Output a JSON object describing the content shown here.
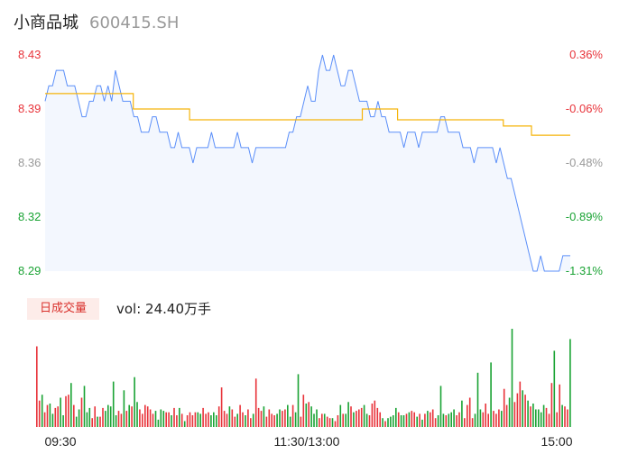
{
  "header": {
    "name": "小商品城",
    "code": "600415.SH"
  },
  "colors": {
    "price_line": "#5b8ff9",
    "avg_line": "#f5b40a",
    "up": "#e8333a",
    "down": "#1aa334",
    "flat": "#999999"
  },
  "volume": {
    "badge": "日成交量",
    "summary": "vol: 24.40万手"
  },
  "chart_data": [
    {
      "type": "line",
      "title": "",
      "y_ticks_left": [
        "8.43",
        "8.39",
        "8.36",
        "8.32",
        "8.29"
      ],
      "y_ticks_right": [
        "0.36%",
        "-0.06%",
        "-0.48%",
        "-0.89%",
        "-1.31%"
      ],
      "ylim": [
        8.29,
        8.43
      ],
      "x_ticks": [
        "09:30",
        "11:30/13:00",
        "15:00"
      ],
      "series": [
        {
          "values": [
            8.4,
            8.41,
            8.41,
            8.42,
            8.42,
            8.42,
            8.41,
            8.41,
            8.41,
            8.4,
            8.39,
            8.39,
            8.4,
            8.4,
            8.41,
            8.41,
            8.4,
            8.41,
            8.4,
            8.42,
            8.41,
            8.4,
            8.4,
            8.4,
            8.39,
            8.39,
            8.38,
            8.38,
            8.38,
            8.39,
            8.39,
            8.38,
            8.38,
            8.38,
            8.37,
            8.37,
            8.38,
            8.37,
            8.37,
            8.37,
            8.36,
            8.37,
            8.37,
            8.37,
            8.37,
            8.38,
            8.37,
            8.37,
            8.37,
            8.37,
            8.37,
            8.37,
            8.38,
            8.37,
            8.37,
            8.37,
            8.36,
            8.37,
            8.37,
            8.37,
            8.37,
            8.37,
            8.37,
            8.37,
            8.37,
            8.37,
            8.38,
            8.38,
            8.39,
            8.39,
            8.4,
            8.41,
            8.4,
            8.4,
            8.42,
            8.43,
            8.42,
            8.42,
            8.43,
            8.42,
            8.41,
            8.41,
            8.42,
            8.42,
            8.41,
            8.4,
            8.4,
            8.4,
            8.39,
            8.39,
            8.4,
            8.39,
            8.39,
            8.38,
            8.38,
            8.38,
            8.38,
            8.37,
            8.38,
            8.38,
            8.38,
            8.37,
            8.38,
            8.38,
            8.38,
            8.38,
            8.38,
            8.39,
            8.39,
            8.38,
            8.38,
            8.38,
            8.38,
            8.37,
            8.37,
            8.37,
            8.36,
            8.37,
            8.37,
            8.37,
            8.37,
            8.37,
            8.36,
            8.37,
            8.36,
            8.35,
            8.35,
            8.34,
            8.33,
            8.32,
            8.31,
            8.3,
            8.29,
            8.29,
            8.3,
            8.29,
            8.29,
            8.29,
            8.29,
            8.29,
            8.3,
            8.3,
            8.3
          ],
          "color": "#5b8ff9"
        },
        {
          "values": [
            8.405,
            8.405,
            8.405,
            8.405,
            8.405,
            8.405,
            8.405,
            8.405,
            8.405,
            8.405,
            8.405,
            8.405,
            8.405,
            8.405,
            8.405,
            8.405,
            8.405,
            8.405,
            8.405,
            8.405,
            8.405,
            8.405,
            8.405,
            8.405,
            8.405,
            8.395,
            8.395,
            8.395,
            8.395,
            8.395,
            8.395,
            8.395,
            8.395,
            8.395,
            8.395,
            8.395,
            8.395,
            8.395,
            8.395,
            8.395,
            8.395,
            8.388,
            8.388,
            8.388,
            8.388,
            8.388,
            8.388,
            8.388,
            8.388,
            8.388,
            8.388,
            8.388,
            8.388,
            8.388,
            8.388,
            8.388,
            8.388,
            8.388,
            8.388,
            8.388,
            8.388,
            8.388,
            8.388,
            8.388,
            8.388,
            8.388,
            8.388,
            8.388,
            8.388,
            8.388,
            8.388,
            8.388,
            8.388,
            8.388,
            8.388,
            8.388,
            8.388,
            8.388,
            8.388,
            8.388,
            8.388,
            8.388,
            8.388,
            8.388,
            8.388,
            8.388,
            8.388,
            8.388,
            8.388,
            8.388,
            8.395,
            8.395,
            8.395,
            8.395,
            8.395,
            8.395,
            8.395,
            8.395,
            8.395,
            8.395,
            8.388,
            8.388,
            8.388,
            8.388,
            8.388,
            8.388,
            8.388,
            8.388,
            8.388,
            8.388,
            8.388,
            8.388,
            8.388,
            8.388,
            8.388,
            8.388,
            8.388,
            8.388,
            8.388,
            8.388,
            8.388,
            8.388,
            8.388,
            8.388,
            8.388,
            8.388,
            8.388,
            8.388,
            8.388,
            8.388,
            8.384,
            8.384,
            8.384,
            8.384,
            8.384,
            8.384,
            8.384,
            8.384,
            8.378,
            8.378,
            8.378,
            8.378,
            8.378,
            8.378,
            8.378,
            8.378,
            8.378,
            8.378,
            8.378,
            8.378
          ],
          "color": "#f5b40a"
        }
      ]
    },
    {
      "type": "bar",
      "title": "",
      "values": [
        55,
        18,
        22,
        10,
        15,
        16,
        9,
        13,
        14,
        20,
        8,
        21,
        22,
        30,
        15,
        7,
        12,
        20,
        28,
        10,
        13,
        6,
        14,
        7,
        7,
        13,
        11,
        15,
        14,
        31,
        8,
        11,
        9,
        25,
        11,
        15,
        14,
        34,
        17,
        12,
        9,
        15,
        14,
        12,
        9,
        11,
        5,
        12,
        11,
        10,
        10,
        8,
        13,
        8,
        13,
        9,
        4,
        8,
        10,
        8,
        10,
        10,
        9,
        13,
        9,
        10,
        8,
        10,
        8,
        14,
        27,
        11,
        9,
        14,
        12,
        7,
        9,
        15,
        10,
        8,
        12,
        6,
        9,
        33,
        13,
        11,
        14,
        7,
        12,
        9,
        8,
        9,
        12,
        11,
        12,
        15,
        7,
        15,
        10,
        36,
        7,
        22,
        16,
        17,
        14,
        9,
        12,
        6,
        9,
        9,
        7,
        6,
        6,
        4,
        8,
        15,
        9,
        9,
        17,
        14,
        10,
        11,
        12,
        13,
        15,
        9,
        8,
        16,
        18,
        13,
        10,
        6,
        4,
        6,
        7,
        8,
        13,
        10,
        8,
        8,
        9,
        10,
        11,
        10,
        7,
        9,
        5,
        9,
        11,
        10,
        12,
        6,
        8,
        28,
        9,
        8,
        9,
        10,
        12,
        8,
        10,
        18,
        6,
        15,
        20,
        6,
        9,
        37,
        12,
        10,
        16,
        9,
        44,
        11,
        9,
        12,
        11,
        26,
        15,
        20,
        67,
        17,
        23,
        31,
        25,
        22,
        18,
        14,
        16,
        12,
        12,
        10,
        15,
        13,
        9,
        30,
        52,
        10,
        29,
        15,
        14,
        12,
        60
      ],
      "colors": [
        "up",
        "up",
        "down",
        "up",
        "up",
        "down",
        "down",
        "up",
        "up",
        "down",
        "down",
        "up",
        "up",
        "down",
        "up",
        "down",
        "down",
        "up",
        "down",
        "down",
        "down",
        "up",
        "up",
        "down",
        "up",
        "up",
        "down",
        "down",
        "down",
        "down",
        "down",
        "up",
        "up",
        "down",
        "up",
        "down",
        "up",
        "down",
        "down",
        "up",
        "up",
        "up",
        "up",
        "up",
        "up",
        "down",
        "down",
        "down",
        "down",
        "up",
        "up",
        "down",
        "up",
        "up",
        "down",
        "up",
        "down",
        "up",
        "up",
        "up",
        "up",
        "down",
        "down",
        "up",
        "up",
        "up",
        "down",
        "down",
        "down",
        "up",
        "up",
        "up",
        "up",
        "down",
        "up",
        "up",
        "down",
        "up",
        "up",
        "down",
        "up",
        "up",
        "down",
        "up",
        "up",
        "up",
        "down",
        "up",
        "up",
        "up",
        "up",
        "down",
        "down",
        "up",
        "up",
        "down",
        "down",
        "up",
        "down",
        "down",
        "up",
        "up",
        "down",
        "up",
        "down",
        "down",
        "down",
        "up",
        "up",
        "down",
        "up",
        "up",
        "down",
        "up",
        "up",
        "down",
        "up",
        "down",
        "down",
        "up",
        "down",
        "up",
        "up",
        "up",
        "down",
        "down",
        "up",
        "up",
        "up",
        "up",
        "up",
        "down",
        "up",
        "down",
        "down",
        "down",
        "down",
        "up",
        "down",
        "down",
        "up",
        "down",
        "up",
        "up",
        "down",
        "up",
        "down",
        "up",
        "down",
        "up",
        "up",
        "up",
        "down",
        "down",
        "down",
        "up",
        "down",
        "down",
        "down",
        "up",
        "up",
        "down",
        "up",
        "up",
        "up",
        "up",
        "down",
        "down",
        "down",
        "up",
        "up",
        "up",
        "down",
        "up",
        "up",
        "up",
        "down",
        "up",
        "up",
        "down",
        "down",
        "up",
        "up",
        "up",
        "down",
        "up",
        "down",
        "up",
        "down",
        "down",
        "down",
        "down",
        "down",
        "up",
        "up",
        "up",
        "down",
        "up",
        "up",
        "down",
        "up",
        "up",
        "down",
        "up",
        "flat"
      ]
    }
  ]
}
